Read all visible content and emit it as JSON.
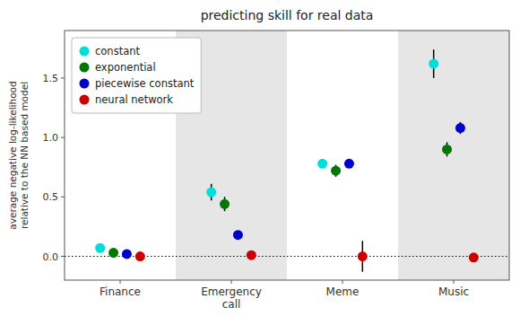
{
  "chart_data": {
    "type": "dot",
    "title": "predicting skill for real data",
    "ylabel": "average negative log-likelihood\nrelative to the NN based model",
    "categories": [
      "Finance",
      "Emergency\ncall",
      "Meme",
      "Music"
    ],
    "ylim": [
      -0.2,
      1.9
    ],
    "yticks": [
      {
        "value": 0.0,
        "label": "0.0"
      },
      0.5,
      {
        "value": 1.0,
        "label": "1.0"
      },
      1.5
    ],
    "grid": false,
    "legend": "upper left",
    "marker": "circle",
    "series": [
      {
        "name": "constant",
        "color": "#00DDDD",
        "values": [
          0.07,
          0.54,
          0.78,
          1.62
        ],
        "errors": [
          0.02,
          0.07,
          0.03,
          0.12
        ]
      },
      {
        "name": "exponential",
        "color": "#007700",
        "values": [
          0.03,
          0.44,
          0.72,
          0.9
        ],
        "errors": [
          0.02,
          0.06,
          0.05,
          0.06
        ]
      },
      {
        "name": "piecewise constant",
        "color": "#0000CC",
        "values": [
          0.02,
          0.18,
          0.78,
          1.08
        ],
        "errors": [
          0.02,
          0.03,
          0.03,
          0.05
        ]
      },
      {
        "name": "neural network",
        "color": "#CC0000",
        "values": [
          0.0,
          0.01,
          0.0,
          -0.01
        ],
        "errors": [
          0.015,
          0.025,
          0.13,
          0.025
        ]
      }
    ]
  }
}
